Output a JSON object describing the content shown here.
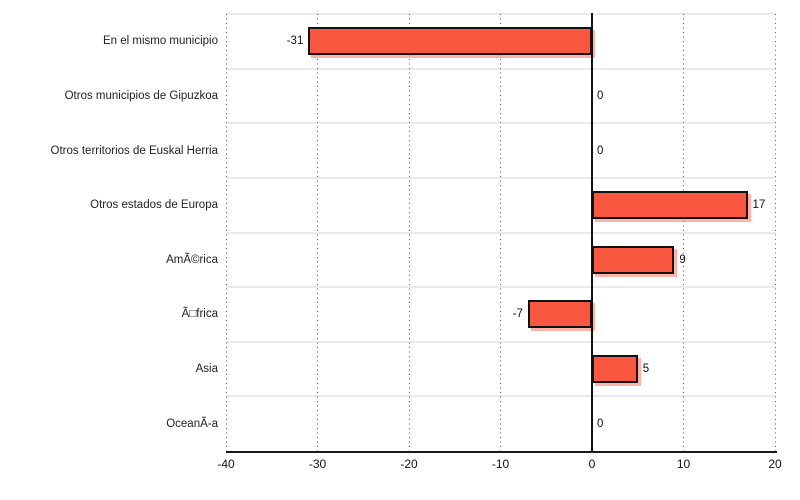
{
  "chart_data": {
    "type": "bar",
    "orientation": "horizontal",
    "title": "",
    "xlabel": "",
    "ylabel": "",
    "legend": "none",
    "grid": "vertical-dotted",
    "categories": [
      "En el mismo municipio",
      "Otros municipios de Gipuzkoa",
      "Otros territorios de Euskal Herria",
      "Otros estados de Europa",
      "AmÃ©rica",
      "Ã□frica",
      "Asia",
      "OceanÃ-a"
    ],
    "values": [
      -31,
      0,
      0,
      17,
      9,
      -7,
      5,
      0
    ],
    "value_labels": [
      "-31",
      "0",
      "0",
      "17",
      "9",
      "-7",
      "5",
      "0"
    ],
    "xlim": [
      -40,
      20
    ],
    "x_ticks": [
      -40,
      -30,
      -20,
      -10,
      0,
      10,
      20
    ],
    "x_tick_labels": [
      "-40",
      "-30",
      "-20",
      "-10",
      "0",
      "10",
      "20"
    ],
    "colors": {
      "bar_fill": "#FA5741",
      "bar_border": "#111111",
      "bar_shadow": "rgba(250,87,65,0.45)",
      "zero_axis": "#111111",
      "bottom_axis": "#1a1a1a",
      "band_separator": "#EAEAEA",
      "gridline": "#5a5a5a",
      "text": "#222222",
      "background": "#ffffff"
    }
  }
}
